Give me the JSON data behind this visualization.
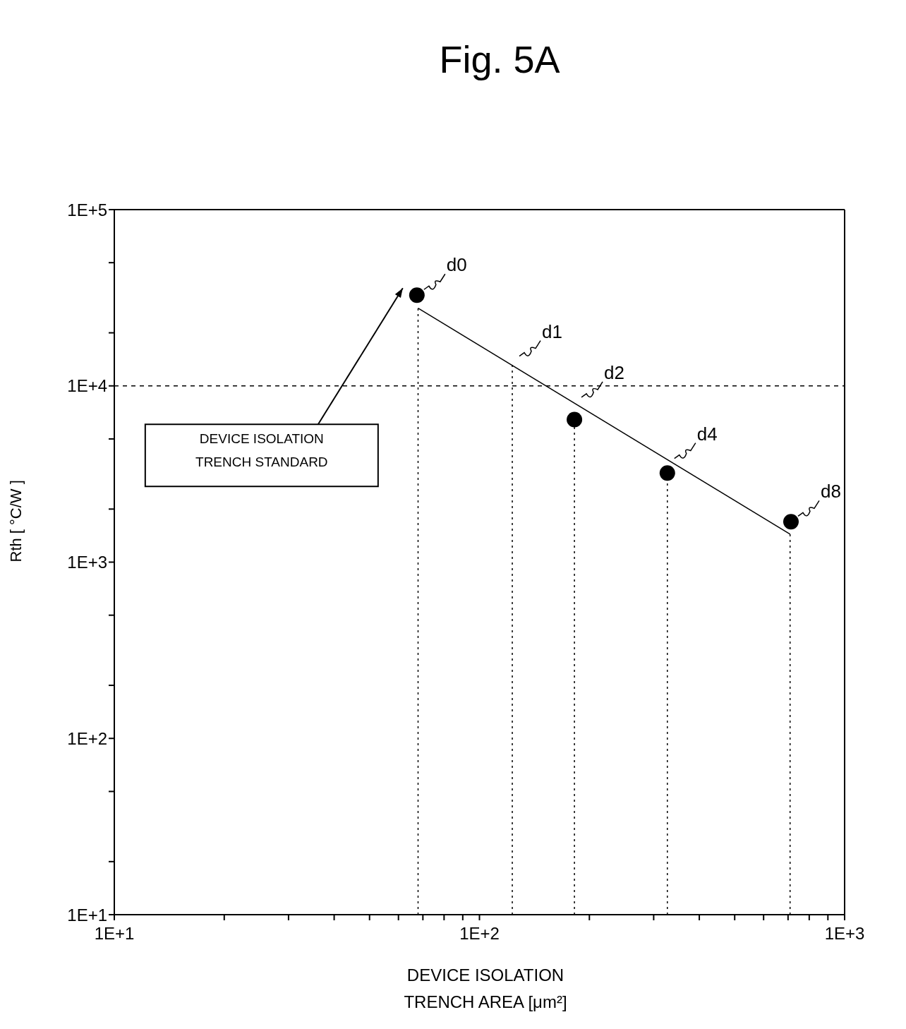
{
  "chart_data": {
    "type": "scatter",
    "title": "Fig. 5A",
    "xlabel": "DEVICE ISOLATION TRENCH AREA [μm²]",
    "ylabel": "Rth [ °C/W ]",
    "log": "xy",
    "xlim": [
      10,
      1000
    ],
    "ylim": [
      10,
      100000
    ],
    "xticks": [
      {
        "value": 10,
        "label": "1E+1"
      },
      {
        "value": 20,
        "label": null
      },
      {
        "value": 30,
        "label": null
      },
      {
        "value": 40,
        "label": null
      },
      {
        "value": 50,
        "label": null
      },
      {
        "value": 60,
        "label": null
      },
      {
        "value": 70,
        "label": null
      },
      {
        "value": 80,
        "label": null
      },
      {
        "value": 90,
        "label": null
      },
      {
        "value": 100,
        "label": "1E+2"
      },
      {
        "value": 200,
        "label": null
      },
      {
        "value": 300,
        "label": null
      },
      {
        "value": 400,
        "label": null
      },
      {
        "value": 500,
        "label": null
      },
      {
        "value": 600,
        "label": null
      },
      {
        "value": 700,
        "label": null
      },
      {
        "value": 800,
        "label": null
      },
      {
        "value": 900,
        "label": null
      },
      {
        "value": 1000,
        "label": "1E+3"
      }
    ],
    "yticks": [
      {
        "value": 10,
        "label": "1E+1"
      },
      {
        "value": 20,
        "label": null
      },
      {
        "value": 50,
        "label": null
      },
      {
        "value": 100,
        "label": "1E+2"
      },
      {
        "value": 200,
        "label": null
      },
      {
        "value": 500,
        "label": null
      },
      {
        "value": 1000,
        "label": "1E+3"
      },
      {
        "value": 2000,
        "label": null
      },
      {
        "value": 5000,
        "label": null
      },
      {
        "value": 10000,
        "label": "1E+4"
      },
      {
        "value": 20000,
        "label": null
      },
      {
        "value": 50000,
        "label": null
      },
      {
        "value": 100000,
        "label": "1E+5"
      }
    ],
    "series": [
      {
        "color": "#000000",
        "marker": "circle",
        "x": [
          67.4,
          182,
          327,
          713
        ],
        "values": [
          32700,
          6440,
          3200,
          1694
        ]
      },
      {
        "type": "line",
        "color": "#000000",
        "line_style": "solid",
        "marker": "none",
        "x": [
          67.9,
          709
        ],
        "values": [
          27600,
          1440
        ]
      },
      {
        "type": "line",
        "color": "#000000",
        "line_style": "dotted",
        "marker": "none",
        "x": [
          67.9,
          67.9
        ],
        "values": [
          10,
          27600
        ]
      },
      {
        "type": "line",
        "color": "#000000",
        "line_style": "dotted",
        "marker": "none",
        "x": [
          123,
          123
        ],
        "values": [
          10,
          13700
        ]
      },
      {
        "type": "line",
        "color": "#000000",
        "line_style": "dotted",
        "marker": "none",
        "x": [
          182,
          182
        ],
        "values": [
          10,
          6440
        ]
      },
      {
        "type": "line",
        "color": "#000000",
        "line_style": "dotted",
        "marker": "none",
        "x": [
          327,
          327
        ],
        "values": [
          10,
          3200
        ]
      },
      {
        "type": "line",
        "color": "#000000",
        "line_style": "dotted",
        "marker": "none",
        "x": [
          709,
          709
        ],
        "values": [
          10,
          1440
        ]
      }
    ],
    "ref_lines": [
      {
        "axis": "y",
        "value": 10000,
        "label": null,
        "color": "#000000",
        "line_style": "dashed"
      }
    ],
    "annotations": [
      {
        "text": "d0",
        "x": 67.4,
        "y": 32700
      },
      {
        "text": "d1",
        "x": 123,
        "y": 13700
      },
      {
        "text": "d2",
        "x": 182,
        "y": 8000
      },
      {
        "text": "d4",
        "x": 327,
        "y": 3600
      },
      {
        "text": "d8",
        "x": 713,
        "y": 1694
      },
      "DEVICE ISOLATION TRENCH STANDARD"
    ]
  }
}
